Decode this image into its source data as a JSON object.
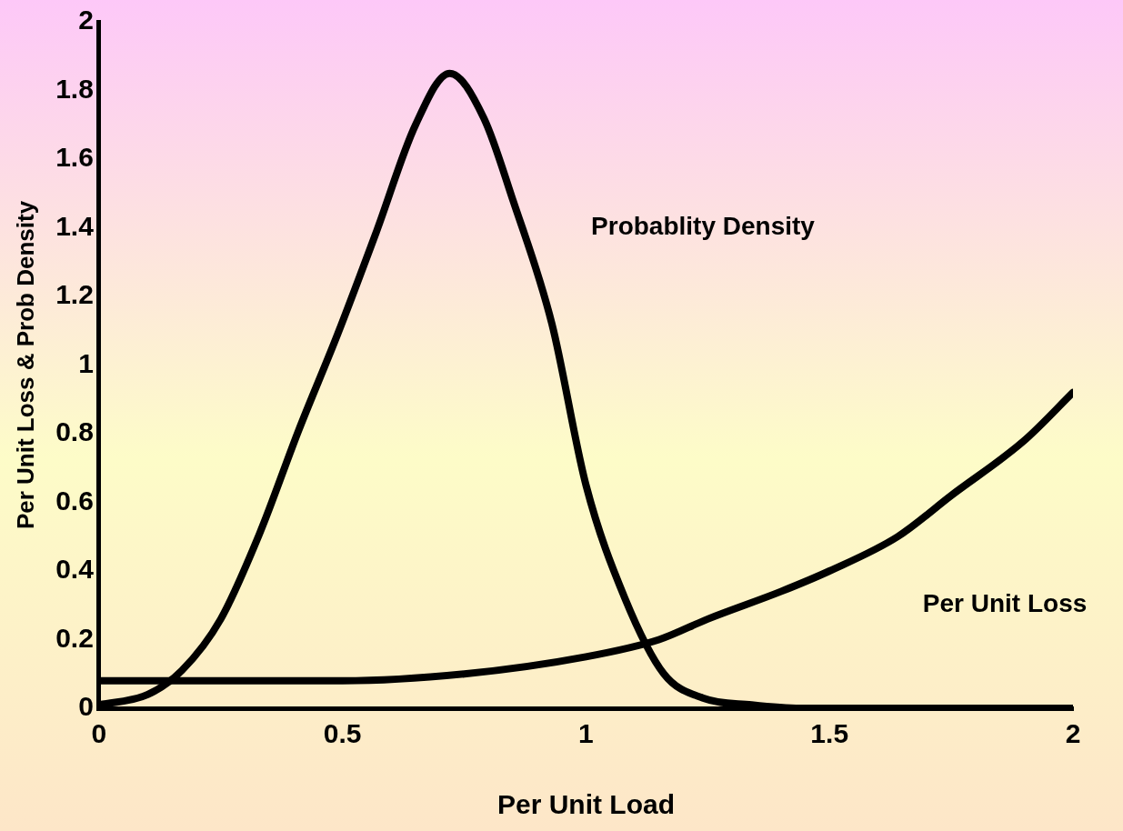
{
  "chart_data": {
    "type": "line",
    "xlabel": "Per Unit Load",
    "ylabel": "Per Unit Loss & Prob Density",
    "xlim": [
      0,
      2
    ],
    "xticks": [
      0,
      0.5,
      1,
      1.5,
      2
    ],
    "ylim": [
      0,
      2
    ],
    "yticks": [
      0,
      0.2,
      0.4,
      0.6,
      0.8,
      1,
      1.2,
      1.4,
      1.6,
      1.8,
      2
    ],
    "grid": false,
    "legend": false,
    "marker": "none",
    "line_style": "solid",
    "series": [
      {
        "name": "Probablity Density",
        "color": "#000000",
        "x": [
          0,
          0.1,
          0.17,
          0.25,
          0.33,
          0.41,
          0.49,
          0.57,
          0.65,
          0.72,
          0.79,
          0.85,
          0.93,
          1.0,
          1.08,
          1.16,
          1.24,
          1.34,
          1.44,
          2
        ],
        "values": [
          0.01,
          0.04,
          0.11,
          0.26,
          0.51,
          0.81,
          1.09,
          1.39,
          1.7,
          1.85,
          1.72,
          1.48,
          1.12,
          0.65,
          0.32,
          0.1,
          0.03,
          0.01,
          0,
          0
        ]
      },
      {
        "name": "Per Unit Loss",
        "color": "#000000",
        "x": [
          0,
          0.25,
          0.5,
          0.75,
          1.0,
          1.15,
          1.25,
          1.4,
          1.5,
          1.64,
          1.75,
          1.9,
          2
        ],
        "values": [
          0.08,
          0.08,
          0.08,
          0.1,
          0.15,
          0.2,
          0.26,
          0.34,
          0.4,
          0.5,
          0.62,
          0.78,
          0.92
        ]
      }
    ]
  }
}
